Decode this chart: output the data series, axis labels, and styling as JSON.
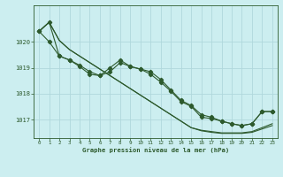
{
  "background_color": "#cceef0",
  "grid_color": "#b0d8dc",
  "line_color": "#2d5a2d",
  "xlabel": "Graphe pression niveau de la mer (hPa)",
  "x_ticks": [
    0,
    1,
    2,
    3,
    4,
    5,
    6,
    7,
    8,
    9,
    10,
    11,
    12,
    13,
    14,
    15,
    16,
    17,
    18,
    19,
    20,
    21,
    22,
    23
  ],
  "y_ticks": [
    1017,
    1018,
    1019,
    1020
  ],
  "ylim": [
    1016.3,
    1021.4
  ],
  "xlim": [
    -0.5,
    23.5
  ],
  "series": {
    "smooth1": [
      1020.4,
      1020.75,
      1020.05,
      1019.7,
      1019.45,
      1019.2,
      1018.95,
      1018.7,
      1018.45,
      1018.2,
      1017.95,
      1017.7,
      1017.45,
      1017.2,
      1016.95,
      1016.7,
      1016.6,
      1016.55,
      1016.5,
      1016.5,
      1016.5,
      1016.55,
      1016.7,
      1016.85
    ],
    "jagged1": [
      1020.4,
      1020.0,
      1019.45,
      1019.3,
      1019.05,
      1018.75,
      1018.7,
      1019.0,
      1019.3,
      1019.05,
      1018.95,
      1018.85,
      1018.55,
      1018.15,
      1017.75,
      1017.55,
      1017.2,
      1017.1,
      1016.95,
      1016.85,
      1016.78,
      1016.85,
      1017.32,
      1017.32
    ],
    "jagged2": [
      1020.4,
      1020.75,
      1019.45,
      1019.3,
      1019.1,
      1018.85,
      1018.7,
      1018.85,
      1019.2,
      1019.05,
      1018.95,
      1018.75,
      1018.45,
      1018.1,
      1017.7,
      1017.52,
      1017.1,
      1017.05,
      1016.95,
      1016.85,
      1016.78,
      1016.85,
      1017.32,
      1017.32
    ],
    "smooth2": [
      1020.4,
      1020.75,
      1020.05,
      1019.7,
      1019.45,
      1019.2,
      1018.95,
      1018.7,
      1018.45,
      1018.2,
      1017.95,
      1017.7,
      1017.45,
      1017.2,
      1016.95,
      1016.7,
      1016.58,
      1016.52,
      1016.48,
      1016.48,
      1016.48,
      1016.52,
      1016.65,
      1016.78
    ]
  }
}
